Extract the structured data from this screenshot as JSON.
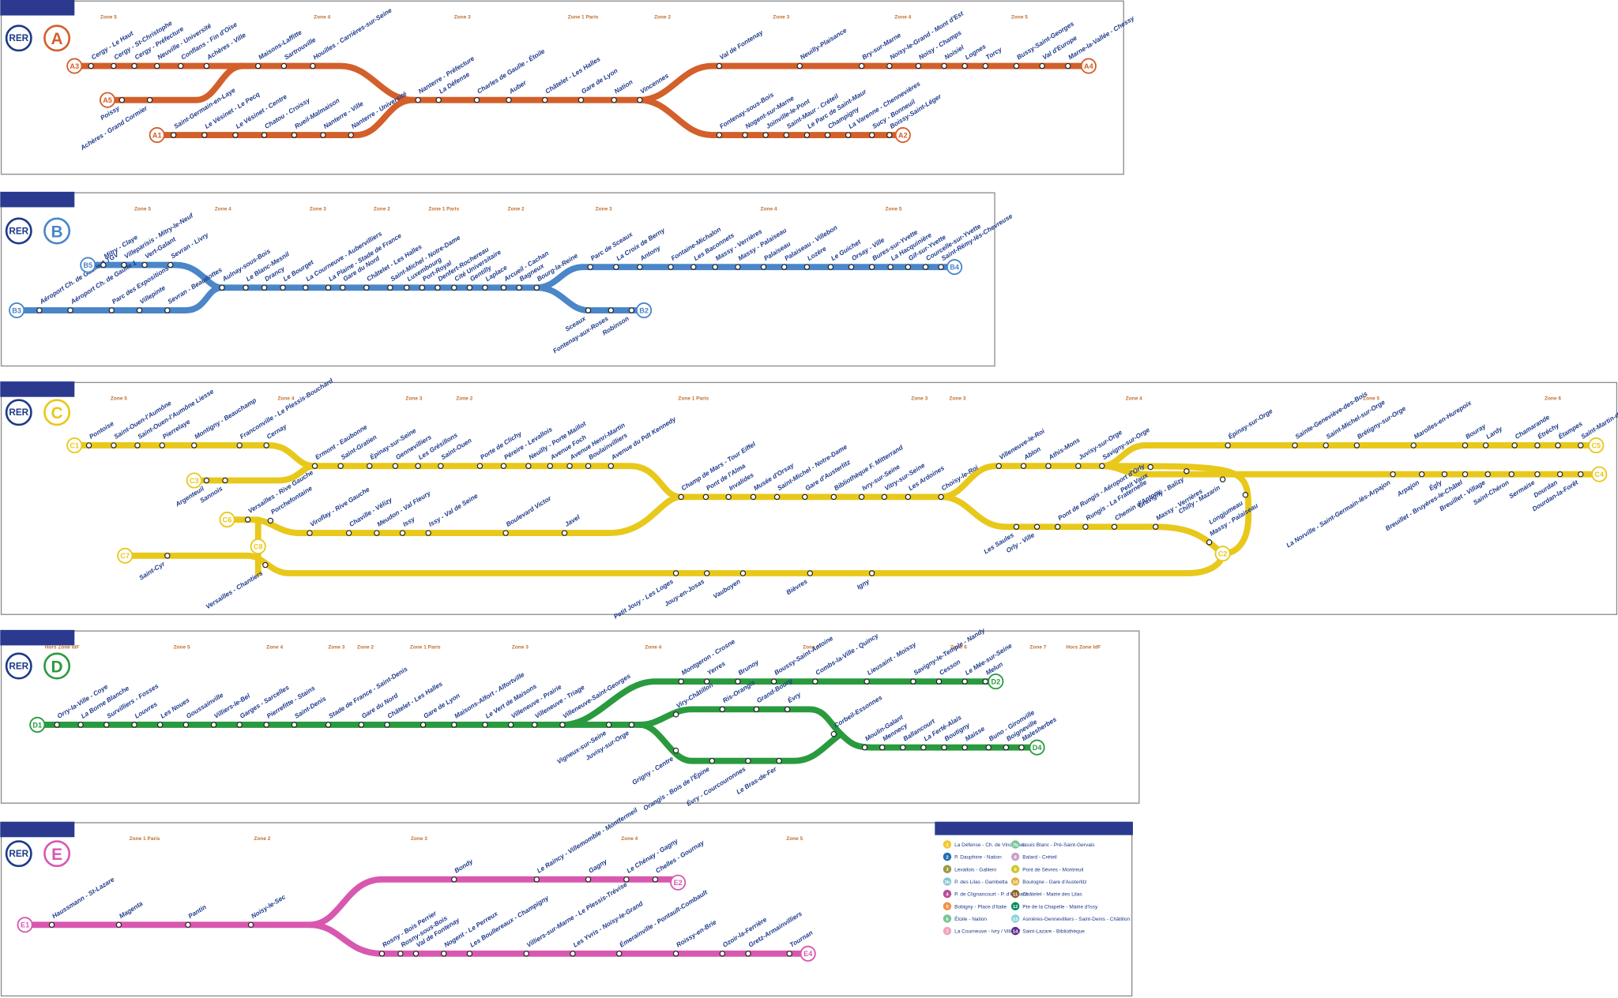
{
  "lines": [
    {
      "badge": "RER",
      "letter": "A",
      "color": "#d35f2b",
      "branches": [
        "A1",
        "A2",
        "A3",
        "A4",
        "A5"
      ],
      "zones": [
        "Zone 5",
        "Zone 4",
        "Zone 3",
        "Zone 1 Paris",
        "Zone 2",
        "Zone 3",
        "Zone 4",
        "Zone 5"
      ],
      "stations": [
        "Cergy - Le Haut",
        "Cergy - St-Christophe",
        "Cergy - Préfecture",
        "Neuville - Université",
        "Conflans - Fin d'Oise",
        "Achères - Ville",
        "Maisons-Laffitte",
        "Sartrouville",
        "Houilles - Carrières-sur-Seine",
        "Poissy",
        "Achères - Grand Cormier",
        "Saint-Germain-en-Laye",
        "Le Vésinet - Le Pecq",
        "Le Vésinet - Centre",
        "Chatou - Croissy",
        "Rueil-Malmaison",
        "Nanterre - Ville",
        "Nanterre - Université",
        "Nanterre - Préfecture",
        "La Défense",
        "Charles de Gaulle - Étoile",
        "Auber",
        "Châtelet - Les Halles",
        "Gare de Lyon",
        "Nation",
        "Vincennes",
        "Val de Fontenay",
        "Neuilly-Plaisance",
        "Bry-sur-Marne",
        "Noisy-le-Grand - Mont d'Est",
        "Noisy - Champs",
        "Noisiel",
        "Lognes",
        "Torcy",
        "Bussy-Saint-Georges",
        "Val d'Europe",
        "Marne-la-Vallée - Chessy",
        "Fontenay-sous-Bois",
        "Nogent-sur-Marne",
        "Joinville-le-Pont",
        "Saint-Maur - Créteil",
        "Le Parc de Saint-Maur",
        "Champigny",
        "La Varenne - Chennevières",
        "Sucy - Bonneuil",
        "Boissy-Saint-Léger"
      ]
    },
    {
      "badge": "RER",
      "letter": "B",
      "color": "#4a86c8",
      "branches": [
        "B2",
        "B3",
        "B4",
        "B5"
      ],
      "zones": [
        "Zone 5",
        "Zone 4",
        "Zone 3",
        "Zone 2",
        "Zone 1 Paris",
        "Zone 2",
        "Zone 3",
        "Zone 4",
        "Zone 5"
      ],
      "stations": [
        "Aéroport Ch. de Gaulle 2 TGV",
        "Aéroport Ch. de Gaulle 1",
        "Parc des Expositions",
        "Villepinte",
        "Sevran - Beaudottes",
        "Mitry - Claye",
        "Villeparisis - Mitry-le-Neuf",
        "Vert-Galant",
        "Sevran - Livry",
        "Aulnay-sous-Bois",
        "Le Blanc-Mesnil",
        "Drancy",
        "Le Bourget",
        "La Courneuve - Aubervilliers",
        "La Plaine - Stade de France",
        "Gare du Nord",
        "Châtelet - Les Halles",
        "Saint-Michel - Notre-Dame",
        "Luxembourg",
        "Port-Royal",
        "Denfert-Rochereau",
        "Cité Universitaire",
        "Gentilly",
        "Laplace",
        "Arcueil - Cachan",
        "Bagneux",
        "Bourg-la-Reine",
        "Sceaux",
        "Fontenay-aux-Roses",
        "Robinson",
        "Parc de Sceaux",
        "La Croix de Berny",
        "Antony",
        "Fontaine-Michalon",
        "Les Baconnets",
        "Massy - Verrières",
        "Massy - Palaiseau",
        "Palaiseau",
        "Palaiseau - Villebon",
        "Lozère",
        "Le Guichet",
        "Orsay - Ville",
        "Bures-sur-Yvette",
        "La Hacquinière",
        "Gif-sur-Yvette",
        "Courcelle-sur-Yvette",
        "Saint-Rémy-lès-Chevreuse"
      ]
    },
    {
      "badge": "RER",
      "letter": "C",
      "color": "#e8c81a",
      "branches": [
        "C1",
        "C2",
        "C3",
        "C4",
        "C5",
        "C6",
        "C7",
        "C8"
      ],
      "zones": [
        "Zone 5",
        "Zone 4",
        "Zone 3",
        "Zone 2",
        "Zone 1 Paris",
        "Zone 3",
        "Zone 3",
        "Zone 4",
        "Zone 5",
        "Zone 6"
      ],
      "stations": [
        "Pontoise",
        "Saint-Ouen-l'Aumône",
        "Saint-Ouen-l'Aumône Liesse",
        "Pierrelaye",
        "Montigny - Beauchamp",
        "Franconville - Le Plessis-Bouchard",
        "Cernay",
        "Argenteuil",
        "Sannois",
        "Ermont - Eaubonne",
        "Saint-Gratien",
        "Épinay-sur-Seine",
        "Gennevilliers",
        "Les Grésillons",
        "Saint-Ouen",
        "Porte de Clichy",
        "Péreire - Levallois",
        "Neuilly - Porte Maillot",
        "Avenue Foch",
        "Avenue Henri-Martin",
        "Boulainvilliers",
        "Avenue du Pdt Kennedy",
        "Champ de Mars - Tour Eiffel",
        "Pont de l'Alma",
        "Invalides",
        "Musée d'Orsay",
        "Saint-Michel - Notre-Dame",
        "Gare d'Austerlitz",
        "Bibliothèque F. Mitterrand",
        "Ivry-sur-Seine",
        "Vitry-sur-Seine",
        "Les Ardoines",
        "Choisy-le-Roi",
        "Villeneuve-le-Roi",
        "Ablon",
        "Athis-Mons",
        "Juvisy-sur-Orge",
        "Savigny-sur-Orge",
        "Épinay-sur-Orge",
        "Sainte-Geneviève-des-Bois",
        "Saint-Michel-sur-Orge",
        "Brétigny-sur-Orge",
        "Marolles-en-Hurepoix",
        "Bouray",
        "Lardy",
        "Chamarande",
        "Étréchy",
        "Étampes",
        "Saint-Martin-d'Étampes",
        "La Norville - Saint-Germain-lès-Arpajon",
        "Arpajon",
        "Égly",
        "Breuillet - Bruyères-le-Châtel",
        "Breuillet - Village",
        "Saint-Chéron",
        "Sermaise",
        "Dourdan",
        "Dourdan-la-Forêt",
        "Petit Vaux",
        "Gravigny - Balizy",
        "Chilly - Mazarin",
        "Longjumeau",
        "Les Saules",
        "Orly - Ville",
        "Pont de Rungis - Aéroport d'Orly",
        "Rungis - La Fraternelle",
        "Chemin d'Antony",
        "Massy - Verrières",
        "Massy - Palaiseau",
        "Versailles - Rive Gauche",
        "Porchefontaine",
        "Viroflay - Rive Gauche",
        "Chaville - Vélizy",
        "Meudon - Val Fleury",
        "Issy",
        "Issy - Val de Seine",
        "Boulevard Victor",
        "Javel",
        "Saint-Cyr",
        "Versailles - Chantiers",
        "Petit Jouy - Les Loges",
        "Jouy-en-Josas",
        "Vauboyen",
        "Bièvres",
        "Igny"
      ]
    },
    {
      "badge": "RER",
      "letter": "D",
      "color": "#2a9a3e",
      "branches": [
        "D1",
        "D2",
        "D4"
      ],
      "zones": [
        "Hors Zone IdF",
        "Zone 5",
        "Zone 4",
        "Zone 3",
        "Zone 2",
        "Zone 1 Paris",
        "Zone 3",
        "Zone 4",
        "Zone 5",
        "Zone 6",
        "Zone 7",
        "Hors Zone IdF"
      ],
      "stations": [
        "Orry-la-Ville - Coye",
        "La Borne Blanche",
        "Survilliers - Fosses",
        "Louvres",
        "Les Noues",
        "Goussainville",
        "Villiers-le-Bel",
        "Garges - Sarcelles",
        "Pierrefitte - Stains",
        "Saint-Denis",
        "Stade de France - Saint-Denis",
        "Gare du Nord",
        "Châtelet - Les Halles",
        "Gare de Lyon",
        "Maisons-Alfort - Alfortville",
        "Le Vert de Maisons",
        "Villeneuve - Prairie",
        "Villeneuve - Triage",
        "Villeneuve-Saint-Georges",
        "Montgeron - Crosne",
        "Yerres",
        "Brunoy",
        "Boussy-Saint-Antoine",
        "Combs-la-Ville - Quincy",
        "Lieusaint - Moissy",
        "Savigny-le-Temple - Nandy",
        "Cesson",
        "Le Mée-sur-Seine",
        "Melun",
        "Vigneux-sur-Seine",
        "Juvisy-sur-Orge",
        "Viry-Châtillon",
        "Ris-Orangis",
        "Grand-Bourg",
        "Évry",
        "Corbeil-Essonnes",
        "Grigny - Centre",
        "Orangis - Bois de l'Épine",
        "Évry - Courcouronnes",
        "Le Bras-de-Fer",
        "Moulin-Galant",
        "Mennecy",
        "Ballancourt",
        "La Ferté-Alais",
        "Boutigny",
        "Maisse",
        "Buno - Gironville",
        "Boigneville",
        "Malesherbes"
      ]
    },
    {
      "badge": "RER",
      "letter": "E",
      "color": "#d858b0",
      "branches": [
        "E1",
        "E2",
        "E4"
      ],
      "zones": [
        "Zone 1 Paris",
        "Zone 2",
        "Zone 3",
        "Zone 4",
        "Zone 5"
      ],
      "stations": [
        "Haussmann - St-Lazare",
        "Magenta",
        "Pantin",
        "Noisy-le-Sec",
        "Bondy",
        "Le Raincy - Villemomble - Montfermeil",
        "Gagny",
        "Le Chénay - Gagny",
        "Chelles - Gournay",
        "Rosny - Bois Perrier",
        "Rosny-sous-Bois",
        "Val de Fontenay",
        "Nogent - Le Perreux",
        "Les Boullereaux - Champigny",
        "Villiers-sur-Marne - Le Plessis-Trévise",
        "Les Yvris - Noisy-le-Grand",
        "Émerainville - Pontault-Combault",
        "Roissy-en-Brie",
        "Ozoir-la-Ferrière",
        "Gretz-Armainvilliers",
        "Tournan"
      ]
    }
  ],
  "legend": {
    "items": [
      {
        "code": "1",
        "color": "#f2c931",
        "label": "La Défense - Ch. de Vincennes"
      },
      {
        "code": "2",
        "color": "#216eb4",
        "label": "P. Dauphine - Nation"
      },
      {
        "code": "3",
        "color": "#9a9940",
        "label": "Levallois - Gallieni"
      },
      {
        "code": "3b",
        "color": "#89c7d6",
        "label": "P. des Lilas - Gambetta"
      },
      {
        "code": "4",
        "color": "#bb4d98",
        "label": "P. de Clignancourt - P. d'Orléans"
      },
      {
        "code": "5",
        "color": "#f68f4b",
        "label": "Bobigny - Place d'Italie"
      },
      {
        "code": "6",
        "color": "#77c696",
        "label": "Étoile - Nation"
      },
      {
        "code": "7",
        "color": "#f3a4ba",
        "label": "La Courneuve - Ivry / Villejuif"
      },
      {
        "code": "7b",
        "color": "#77c696",
        "label": "Louis Blanc - Pré-Saint-Gervais"
      },
      {
        "code": "8",
        "color": "#c5a3ca",
        "label": "Balard - Créteil"
      },
      {
        "code": "9",
        "color": "#cec92b",
        "label": "Pont de Sèvres - Montreuil"
      },
      {
        "code": "10",
        "color": "#e0b03b",
        "label": "Boulogne - Gare d'Austerlitz"
      },
      {
        "code": "11",
        "color": "#8d5e2a",
        "label": "Châtelet - Mairie des Lilas"
      },
      {
        "code": "12",
        "color": "#008b5a",
        "label": "Pte de la Chapelle - Mairie d'Issy"
      },
      {
        "code": "13",
        "color": "#87d3df",
        "label": "Asnières-Gennevilliers - Saint-Denis - Châtillon"
      },
      {
        "code": "14",
        "color": "#662c91",
        "label": "Saint-Lazare - Bibliothèque"
      }
    ]
  }
}
